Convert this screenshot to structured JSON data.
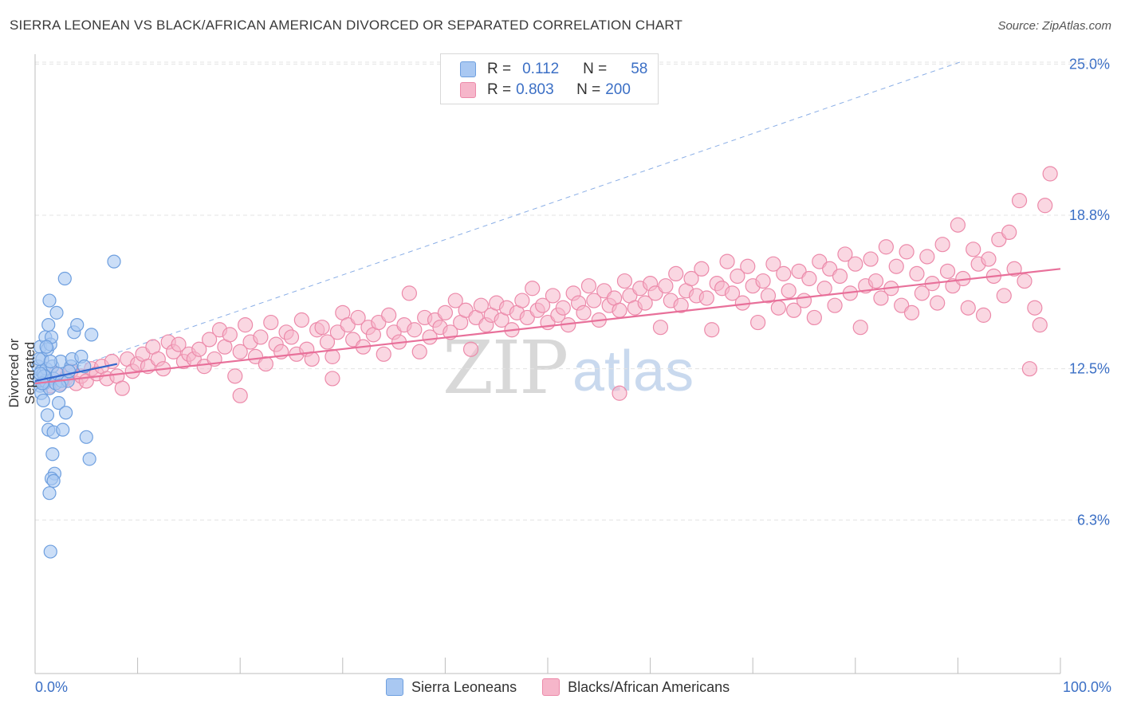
{
  "title": "SIERRA LEONEAN VS BLACK/AFRICAN AMERICAN DIVORCED OR SEPARATED CORRELATION CHART",
  "source": "Source: ZipAtlas.com",
  "watermark": {
    "zip": "ZIP",
    "atlas": "atlas"
  },
  "legend": {
    "rows": [
      {
        "r_label": "R =",
        "r_value": "0.112",
        "n_label": "N =",
        "n_value": "58"
      },
      {
        "r_label": "R =",
        "r_value": "0.803",
        "n_label": "N =",
        "n_value": "200"
      }
    ]
  },
  "bottom_legend": [
    "Sierra Leoneans",
    "Blacks/African Americans"
  ],
  "colors": {
    "blue_fill": "#a9c8f2",
    "blue_stroke": "#6e9fdf",
    "blue_line": "#3366cc",
    "pink_fill": "#f6b6ca",
    "pink_stroke": "#ec8aaa",
    "pink_line": "#e8709a",
    "axis_text": "#3b6fc5",
    "grid": "#e3e3e3"
  },
  "chart_data": {
    "type": "scatter",
    "title": "SIERRA LEONEAN VS BLACK/AFRICAN AMERICAN DIVORCED OR SEPARATED CORRELATION CHART",
    "xlabel": "",
    "ylabel": "Divorced or Separated",
    "x_tick_labels": [
      "0.0%",
      "100.0%"
    ],
    "y_tick_labels": [
      "6.3%",
      "12.5%",
      "18.8%",
      "25.0%"
    ],
    "y_ticks": [
      6.3,
      12.5,
      18.8,
      25.0
    ],
    "xlim": [
      0,
      100
    ],
    "ylim": [
      0,
      25.6
    ],
    "grid": true,
    "legend_position": "top-center",
    "series": [
      {
        "name": "Sierra Leoneans",
        "r": 0.112,
        "n": 58,
        "trend": {
          "x": [
            0,
            8
          ],
          "y": [
            12.0,
            12.7
          ]
        },
        "trend_extension": {
          "x": [
            0,
            100
          ],
          "y": [
            12.0,
            26.5
          ]
        },
        "points": [
          [
            0.3,
            12.6
          ],
          [
            0.4,
            12.1
          ],
          [
            0.5,
            11.8
          ],
          [
            0.6,
            12.4
          ],
          [
            0.5,
            13.4
          ],
          [
            0.7,
            12.9
          ],
          [
            0.8,
            12.3
          ],
          [
            0.9,
            11.9
          ],
          [
            0.6,
            11.5
          ],
          [
            0.8,
            11.2
          ],
          [
            1.0,
            12.0
          ],
          [
            1.1,
            12.5
          ],
          [
            1.2,
            13.3
          ],
          [
            1.0,
            13.8
          ],
          [
            1.3,
            14.3
          ],
          [
            1.4,
            15.3
          ],
          [
            1.5,
            13.5
          ],
          [
            1.6,
            13.8
          ],
          [
            1.7,
            12.6
          ],
          [
            1.8,
            12.1
          ],
          [
            1.4,
            11.7
          ],
          [
            1.2,
            10.6
          ],
          [
            1.3,
            10.0
          ],
          [
            1.8,
            9.9
          ],
          [
            1.7,
            9.0
          ],
          [
            1.9,
            8.2
          ],
          [
            1.6,
            8.0
          ],
          [
            1.8,
            7.9
          ],
          [
            1.4,
            7.4
          ],
          [
            1.5,
            5.0
          ],
          [
            2.0,
            11.9
          ],
          [
            2.2,
            12.3
          ],
          [
            2.3,
            11.1
          ],
          [
            2.5,
            12.8
          ],
          [
            2.6,
            12.0
          ],
          [
            2.7,
            10.0
          ],
          [
            2.1,
            14.8
          ],
          [
            2.9,
            16.2
          ],
          [
            3.0,
            10.7
          ],
          [
            3.2,
            12.0
          ],
          [
            3.5,
            12.6
          ],
          [
            3.6,
            12.9
          ],
          [
            3.8,
            14.0
          ],
          [
            4.1,
            14.3
          ],
          [
            4.5,
            13.0
          ],
          [
            4.8,
            12.6
          ],
          [
            5.0,
            9.7
          ],
          [
            5.3,
            8.8
          ],
          [
            5.5,
            13.9
          ],
          [
            7.7,
            16.9
          ],
          [
            0.4,
            12.9
          ],
          [
            0.9,
            12.2
          ],
          [
            1.1,
            13.4
          ],
          [
            0.7,
            11.9
          ],
          [
            1.5,
            12.8
          ],
          [
            2.4,
            11.8
          ],
          [
            3.3,
            12.4
          ],
          [
            0.5,
            12.3
          ]
        ]
      },
      {
        "name": "Blacks/African Americans",
        "r": 0.803,
        "n": 200,
        "trend": {
          "x": [
            0,
            100
          ],
          "y": [
            11.9,
            16.6
          ]
        },
        "points": [
          [
            1.0,
            12.0
          ],
          [
            1.5,
            11.8
          ],
          [
            2.0,
            12.3
          ],
          [
            2.5,
            11.9
          ],
          [
            3.0,
            12.1
          ],
          [
            3.5,
            12.4
          ],
          [
            4.0,
            11.9
          ],
          [
            4.5,
            12.2
          ],
          [
            5.0,
            12.0
          ],
          [
            5.5,
            12.5
          ],
          [
            6.0,
            12.3
          ],
          [
            6.5,
            12.6
          ],
          [
            7.0,
            12.1
          ],
          [
            7.5,
            12.8
          ],
          [
            8.0,
            12.2
          ],
          [
            8.5,
            11.7
          ],
          [
            9.0,
            12.9
          ],
          [
            9.5,
            12.4
          ],
          [
            10.0,
            12.7
          ],
          [
            10.5,
            13.1
          ],
          [
            11.0,
            12.6
          ],
          [
            11.5,
            13.4
          ],
          [
            12.0,
            12.9
          ],
          [
            12.5,
            12.5
          ],
          [
            13.0,
            13.6
          ],
          [
            13.5,
            13.2
          ],
          [
            14.0,
            13.5
          ],
          [
            14.5,
            12.8
          ],
          [
            15.0,
            13.1
          ],
          [
            15.5,
            12.9
          ],
          [
            16.0,
            13.3
          ],
          [
            16.5,
            12.6
          ],
          [
            17.0,
            13.7
          ],
          [
            17.5,
            12.9
          ],
          [
            18.0,
            14.1
          ],
          [
            18.5,
            13.4
          ],
          [
            19.0,
            13.9
          ],
          [
            19.5,
            12.2
          ],
          [
            20.0,
            13.2
          ],
          [
            20.5,
            14.3
          ],
          [
            21.0,
            13.6
          ],
          [
            21.5,
            13.0
          ],
          [
            22.0,
            13.8
          ],
          [
            22.5,
            12.7
          ],
          [
            23.0,
            14.4
          ],
          [
            23.5,
            13.5
          ],
          [
            24.0,
            13.2
          ],
          [
            24.5,
            14.0
          ],
          [
            25.0,
            13.8
          ],
          [
            25.5,
            13.1
          ],
          [
            26.0,
            14.5
          ],
          [
            26.5,
            13.3
          ],
          [
            27.0,
            12.9
          ],
          [
            27.5,
            14.1
          ],
          [
            28.0,
            14.2
          ],
          [
            28.5,
            13.6
          ],
          [
            29.0,
            13.0
          ],
          [
            29.5,
            14.0
          ],
          [
            30.0,
            14.8
          ],
          [
            30.5,
            14.3
          ],
          [
            31.0,
            13.7
          ],
          [
            31.5,
            14.6
          ],
          [
            32.0,
            13.4
          ],
          [
            32.5,
            14.2
          ],
          [
            33.0,
            13.9
          ],
          [
            33.5,
            14.4
          ],
          [
            34.0,
            13.1
          ],
          [
            34.5,
            14.7
          ],
          [
            35.0,
            14.0
          ],
          [
            35.5,
            13.6
          ],
          [
            36.0,
            14.3
          ],
          [
            36.5,
            15.6
          ],
          [
            37.0,
            14.1
          ],
          [
            37.5,
            13.2
          ],
          [
            38.0,
            14.6
          ],
          [
            38.5,
            13.8
          ],
          [
            39.0,
            14.5
          ],
          [
            39.5,
            14.2
          ],
          [
            40.0,
            14.8
          ],
          [
            40.5,
            14.0
          ],
          [
            41.0,
            15.3
          ],
          [
            41.5,
            14.4
          ],
          [
            42.0,
            14.9
          ],
          [
            42.5,
            13.3
          ],
          [
            43.0,
            14.6
          ],
          [
            43.5,
            15.1
          ],
          [
            44.0,
            14.3
          ],
          [
            44.5,
            14.7
          ],
          [
            45.0,
            15.2
          ],
          [
            45.5,
            14.5
          ],
          [
            46.0,
            15.0
          ],
          [
            46.5,
            14.1
          ],
          [
            47.0,
            14.8
          ],
          [
            47.5,
            15.3
          ],
          [
            48.0,
            14.6
          ],
          [
            48.5,
            15.8
          ],
          [
            49.0,
            14.9
          ],
          [
            49.5,
            15.1
          ],
          [
            50.0,
            14.4
          ],
          [
            50.5,
            15.5
          ],
          [
            51.0,
            14.7
          ],
          [
            51.5,
            15.0
          ],
          [
            52.0,
            14.3
          ],
          [
            52.5,
            15.6
          ],
          [
            53.0,
            15.2
          ],
          [
            53.5,
            14.8
          ],
          [
            54.0,
            15.9
          ],
          [
            54.5,
            15.3
          ],
          [
            55.0,
            14.5
          ],
          [
            55.5,
            15.7
          ],
          [
            56.0,
            15.1
          ],
          [
            56.5,
            15.4
          ],
          [
            57.0,
            14.9
          ],
          [
            57.5,
            16.1
          ],
          [
            58.0,
            15.5
          ],
          [
            58.5,
            15.0
          ],
          [
            59.0,
            15.8
          ],
          [
            59.5,
            15.2
          ],
          [
            60.0,
            16.0
          ],
          [
            60.5,
            15.6
          ],
          [
            61.0,
            14.2
          ],
          [
            61.5,
            15.9
          ],
          [
            62.0,
            15.3
          ],
          [
            62.5,
            16.4
          ],
          [
            63.0,
            15.1
          ],
          [
            63.5,
            15.7
          ],
          [
            64.0,
            16.2
          ],
          [
            64.5,
            15.5
          ],
          [
            65.0,
            16.6
          ],
          [
            65.5,
            15.4
          ],
          [
            66.0,
            14.1
          ],
          [
            66.5,
            16.0
          ],
          [
            67.0,
            15.8
          ],
          [
            67.5,
            16.9
          ],
          [
            68.0,
            15.6
          ],
          [
            68.5,
            16.3
          ],
          [
            69.0,
            15.2
          ],
          [
            69.5,
            16.7
          ],
          [
            70.0,
            15.9
          ],
          [
            70.5,
            14.4
          ],
          [
            71.0,
            16.1
          ],
          [
            71.5,
            15.5
          ],
          [
            72.0,
            16.8
          ],
          [
            72.5,
            15.0
          ],
          [
            73.0,
            16.4
          ],
          [
            73.5,
            15.7
          ],
          [
            74.0,
            14.9
          ],
          [
            74.5,
            16.5
          ],
          [
            75.0,
            15.3
          ],
          [
            75.5,
            16.2
          ],
          [
            76.0,
            14.6
          ],
          [
            76.5,
            16.9
          ],
          [
            77.0,
            15.8
          ],
          [
            77.5,
            16.6
          ],
          [
            78.0,
            15.1
          ],
          [
            78.5,
            16.3
          ],
          [
            79.0,
            17.2
          ],
          [
            79.5,
            15.6
          ],
          [
            80.0,
            16.8
          ],
          [
            80.5,
            14.2
          ],
          [
            81.0,
            15.9
          ],
          [
            81.5,
            17.0
          ],
          [
            82.0,
            16.1
          ],
          [
            82.5,
            15.4
          ],
          [
            83.0,
            17.5
          ],
          [
            83.5,
            15.8
          ],
          [
            84.0,
            16.7
          ],
          [
            84.5,
            15.1
          ],
          [
            85.0,
            17.3
          ],
          [
            85.5,
            14.8
          ],
          [
            86.0,
            16.4
          ],
          [
            86.5,
            15.6
          ],
          [
            87.0,
            17.1
          ],
          [
            87.5,
            16.0
          ],
          [
            88.0,
            15.2
          ],
          [
            88.5,
            17.6
          ],
          [
            89.0,
            16.5
          ],
          [
            89.5,
            15.9
          ],
          [
            90.0,
            18.4
          ],
          [
            90.5,
            16.2
          ],
          [
            91.0,
            15.0
          ],
          [
            91.5,
            17.4
          ],
          [
            92.0,
            16.8
          ],
          [
            92.5,
            14.7
          ],
          [
            93.0,
            17.0
          ],
          [
            93.5,
            16.3
          ],
          [
            94.0,
            17.8
          ],
          [
            94.5,
            15.5
          ],
          [
            95.0,
            18.1
          ],
          [
            95.5,
            16.6
          ],
          [
            96.0,
            19.4
          ],
          [
            96.5,
            16.1
          ],
          [
            97.0,
            12.5
          ],
          [
            97.5,
            15.0
          ],
          [
            98.0,
            14.3
          ],
          [
            98.5,
            19.2
          ],
          [
            99.0,
            20.5
          ],
          [
            57.0,
            11.5
          ],
          [
            20.0,
            11.4
          ],
          [
            29.0,
            12.1
          ]
        ]
      }
    ]
  }
}
